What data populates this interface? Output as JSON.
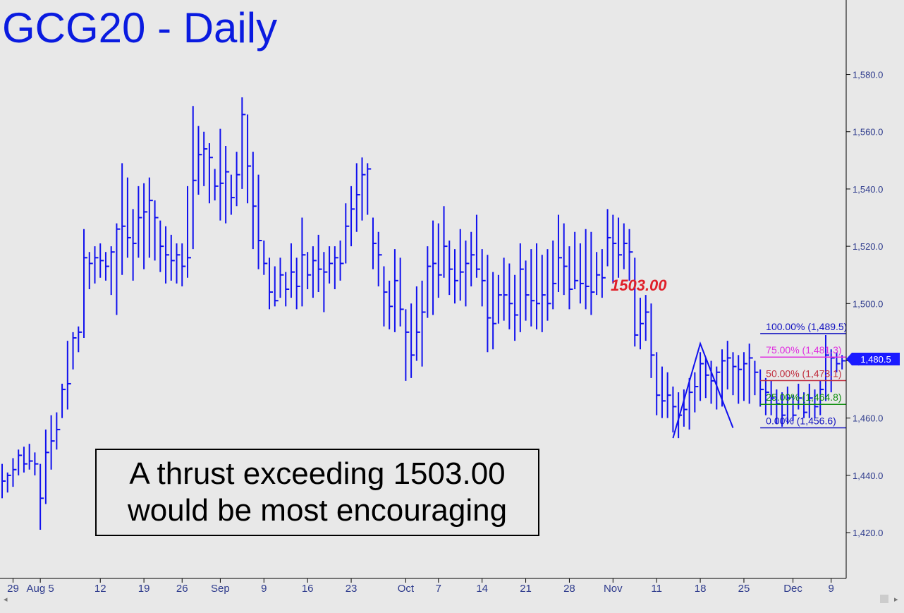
{
  "chart_data": {
    "type": "ohlc",
    "title": "GCG20 - Daily",
    "ylim": [
      1404,
      1606
    ],
    "y_ticks": [
      "1,420.0",
      "1,440.0",
      "1,460.0",
      "1,480.0",
      "1,500.0",
      "1,520.0",
      "1,540.0",
      "1,560.0",
      "1,580.0"
    ],
    "y_tick_values": [
      1420,
      1440,
      1460,
      1480,
      1500,
      1520,
      1540,
      1560,
      1580
    ],
    "x_ticks": [
      "29",
      "Aug 5",
      "12",
      "19",
      "26",
      "Sep",
      "9",
      "16",
      "23",
      "Oct",
      "7",
      "14",
      "21",
      "28",
      "Nov",
      "11",
      "18",
      "25",
      "Dec",
      "9"
    ],
    "x_tick_bar_index": [
      2,
      7,
      18,
      26,
      33,
      40,
      48,
      56,
      64,
      74,
      80,
      88,
      96,
      104,
      112,
      120,
      128,
      136,
      145,
      152
    ],
    "last_price": "1,480.5",
    "bars": [
      [
        0,
        1444,
        1432,
        1438
      ],
      [
        1,
        1441,
        1434,
        1440
      ],
      [
        2,
        1446,
        1436,
        1442
      ],
      [
        3,
        1449,
        1440,
        1447
      ],
      [
        4,
        1450,
        1441,
        1444
      ],
      [
        5,
        1451,
        1442,
        1445
      ],
      [
        6,
        1448,
        1440,
        1444
      ],
      [
        7,
        1444,
        1421,
        1432
      ],
      [
        8,
        1456,
        1430,
        1448
      ],
      [
        9,
        1461,
        1442,
        1452
      ],
      [
        10,
        1462,
        1449,
        1456
      ],
      [
        11,
        1472,
        1460,
        1470
      ],
      [
        12,
        1487,
        1463,
        1472
      ],
      [
        13,
        1490,
        1477,
        1488
      ],
      [
        14,
        1492,
        1483,
        1490
      ],
      [
        15,
        1526,
        1488,
        1516
      ],
      [
        16,
        1518,
        1505,
        1514
      ],
      [
        17,
        1520,
        1507,
        1516
      ],
      [
        18,
        1521,
        1509,
        1515
      ],
      [
        19,
        1518,
        1508,
        1513
      ],
      [
        20,
        1520,
        1503,
        1518
      ],
      [
        21,
        1528,
        1496,
        1526
      ],
      [
        22,
        1549,
        1510,
        1527
      ],
      [
        23,
        1544,
        1516,
        1523
      ],
      [
        24,
        1533,
        1508,
        1521
      ],
      [
        25,
        1541,
        1516,
        1530
      ],
      [
        26,
        1542,
        1512,
        1532
      ],
      [
        27,
        1544,
        1516,
        1536
      ],
      [
        28,
        1536,
        1515,
        1530
      ],
      [
        29,
        1529,
        1511,
        1520
      ],
      [
        30,
        1527,
        1507,
        1517
      ],
      [
        31,
        1524,
        1508,
        1515
      ],
      [
        32,
        1521,
        1507,
        1517
      ],
      [
        33,
        1521,
        1506,
        1513
      ],
      [
        34,
        1541,
        1509,
        1516
      ],
      [
        35,
        1569,
        1519,
        1543
      ],
      [
        36,
        1562,
        1538,
        1552
      ],
      [
        37,
        1560,
        1541,
        1554
      ],
      [
        38,
        1556,
        1535,
        1551
      ],
      [
        39,
        1547,
        1536,
        1541
      ],
      [
        40,
        1561,
        1529,
        1542
      ],
      [
        41,
        1555,
        1528,
        1546
      ],
      [
        42,
        1545,
        1531,
        1537
      ],
      [
        43,
        1553,
        1534,
        1545
      ],
      [
        44,
        1572,
        1540,
        1566
      ],
      [
        45,
        1566,
        1535,
        1548
      ],
      [
        46,
        1553,
        1519,
        1534
      ],
      [
        47,
        1545,
        1512,
        1522
      ],
      [
        48,
        1522,
        1510,
        1514
      ],
      [
        49,
        1516,
        1498,
        1504
      ],
      [
        50,
        1513,
        1499,
        1501
      ],
      [
        51,
        1516,
        1502,
        1510
      ],
      [
        52,
        1511,
        1499,
        1505
      ],
      [
        53,
        1521,
        1502,
        1511
      ],
      [
        54,
        1516,
        1498,
        1506
      ],
      [
        55,
        1530,
        1499,
        1517
      ],
      [
        56,
        1518,
        1505,
        1510
      ],
      [
        57,
        1520,
        1502,
        1515
      ],
      [
        58,
        1524,
        1504,
        1512
      ],
      [
        59,
        1518,
        1497,
        1511
      ],
      [
        60,
        1520,
        1507,
        1514
      ],
      [
        61,
        1520,
        1505,
        1516
      ],
      [
        62,
        1522,
        1508,
        1514
      ],
      [
        63,
        1535,
        1514,
        1527
      ],
      [
        64,
        1541,
        1520,
        1533
      ],
      [
        65,
        1549,
        1525,
        1538
      ],
      [
        66,
        1551,
        1529,
        1545
      ],
      [
        67,
        1549,
        1531,
        1547
      ],
      [
        68,
        1530,
        1512,
        1521
      ],
      [
        69,
        1525,
        1506,
        1517
      ],
      [
        70,
        1513,
        1492,
        1504
      ],
      [
        71,
        1508,
        1491,
        1499
      ],
      [
        72,
        1519,
        1490,
        1508
      ],
      [
        73,
        1516,
        1492,
        1498
      ],
      [
        74,
        1498,
        1473,
        1490
      ],
      [
        75,
        1500,
        1474,
        1482
      ],
      [
        76,
        1506,
        1480,
        1490
      ],
      [
        77,
        1508,
        1478,
        1497
      ],
      [
        78,
        1520,
        1495,
        1513
      ],
      [
        79,
        1529,
        1496,
        1514
      ],
      [
        80,
        1528,
        1502,
        1510
      ],
      [
        81,
        1534,
        1509,
        1520
      ],
      [
        82,
        1522,
        1503,
        1512
      ],
      [
        83,
        1519,
        1500,
        1508
      ],
      [
        84,
        1526,
        1501,
        1511
      ],
      [
        85,
        1522,
        1499,
        1514
      ],
      [
        86,
        1525,
        1506,
        1517
      ],
      [
        87,
        1531,
        1509,
        1512
      ],
      [
        88,
        1519,
        1499,
        1508
      ],
      [
        89,
        1517,
        1483,
        1495
      ],
      [
        90,
        1511,
        1484,
        1493
      ],
      [
        91,
        1510,
        1493,
        1503
      ],
      [
        92,
        1516,
        1494,
        1503
      ],
      [
        93,
        1514,
        1491,
        1500
      ],
      [
        94,
        1510,
        1487,
        1496
      ],
      [
        95,
        1521,
        1490,
        1512
      ],
      [
        96,
        1515,
        1494,
        1503
      ],
      [
        97,
        1519,
        1492,
        1501
      ],
      [
        98,
        1521,
        1491,
        1500
      ],
      [
        99,
        1517,
        1490,
        1503
      ],
      [
        100,
        1519,
        1494,
        1500
      ],
      [
        101,
        1522,
        1498,
        1507
      ],
      [
        102,
        1531,
        1504,
        1516
      ],
      [
        103,
        1528,
        1503,
        1513
      ],
      [
        104,
        1520,
        1498,
        1505
      ],
      [
        105,
        1525,
        1505,
        1508
      ],
      [
        106,
        1521,
        1500,
        1507
      ],
      [
        107,
        1526,
        1498,
        1506
      ],
      [
        108,
        1525,
        1496,
        1504
      ],
      [
        109,
        1518,
        1503,
        1510
      ],
      [
        110,
        1519,
        1502,
        1509
      ],
      [
        111,
        1533,
        1513,
        1523
      ],
      [
        112,
        1531,
        1507,
        1521
      ],
      [
        113,
        1530,
        1509,
        1517
      ],
      [
        114,
        1528,
        1512,
        1521
      ],
      [
        115,
        1526,
        1508,
        1518
      ],
      [
        116,
        1516,
        1485,
        1489
      ],
      [
        117,
        1502,
        1484,
        1493
      ],
      [
        118,
        1503,
        1487,
        1497
      ],
      [
        119,
        1500,
        1474,
        1482
      ],
      [
        120,
        1483,
        1461,
        1468
      ],
      [
        121,
        1478,
        1460,
        1466
      ],
      [
        122,
        1476,
        1460,
        1468
      ],
      [
        123,
        1471,
        1455,
        1464
      ],
      [
        124,
        1469,
        1453,
        1461
      ],
      [
        125,
        1470,
        1457,
        1463
      ],
      [
        126,
        1474,
        1456,
        1469
      ],
      [
        127,
        1476,
        1462,
        1471
      ],
      [
        128,
        1483,
        1466,
        1479
      ],
      [
        129,
        1481,
        1467,
        1475
      ],
      [
        130,
        1480,
        1465,
        1473
      ],
      [
        131,
        1478,
        1463,
        1476
      ],
      [
        132,
        1484,
        1464,
        1480
      ],
      [
        133,
        1487,
        1470,
        1481
      ],
      [
        134,
        1483,
        1468,
        1478
      ],
      [
        135,
        1482,
        1465,
        1477
      ],
      [
        136,
        1483,
        1466,
        1479
      ],
      [
        137,
        1486,
        1465,
        1481
      ],
      [
        138,
        1480,
        1468,
        1476
      ],
      [
        139,
        1477,
        1464,
        1470
      ],
      [
        140,
        1474,
        1461,
        1469
      ],
      [
        141,
        1473,
        1461,
        1467
      ],
      [
        142,
        1470,
        1458,
        1465
      ],
      [
        143,
        1469,
        1457,
        1461
      ],
      [
        144,
        1471,
        1458,
        1467
      ],
      [
        145,
        1468,
        1459,
        1461
      ],
      [
        146,
        1472,
        1463,
        1467
      ],
      [
        147,
        1469,
        1460,
        1462
      ],
      [
        148,
        1472,
        1460,
        1467
      ],
      [
        149,
        1470,
        1460,
        1464
      ],
      [
        150,
        1473,
        1461,
        1470
      ],
      [
        151,
        1489,
        1466,
        1482
      ],
      [
        152,
        1484,
        1469,
        1481
      ],
      [
        153,
        1483,
        1476,
        1479
      ],
      [
        154,
        1482,
        1477,
        1480
      ]
    ],
    "annotations": {
      "level_label": "1503.00",
      "level_label_color": "#e0202a",
      "abc_pattern": {
        "points": [
          [
            123,
            1453
          ],
          [
            128,
            1486
          ],
          [
            134,
            1456.6
          ]
        ]
      },
      "fib_retracement": {
        "bar_range": [
          139,
          154
        ],
        "levels": [
          {
            "label": "100.00% (1,489.5)",
            "value": 1489.5,
            "color": "#1010c0"
          },
          {
            "label": "75.00% (1,481.3)",
            "value": 1481.3,
            "color": "#e030e0"
          },
          {
            "label": "50.00% (1,473.1)",
            "value": 1473.1,
            "color": "#c03040"
          },
          {
            "label": "25.00% (1,464.8)",
            "value": 1464.8,
            "color": "#109010"
          },
          {
            "label": "0.00% (1,456.6)",
            "value": 1456.6,
            "color": "#1010c0"
          }
        ]
      }
    },
    "colors": {
      "bars": "#1010ee",
      "background": "#e8e8e8",
      "title": "#0a1be0",
      "axis_text": "#2d3a8c",
      "price_tag": "#1a1aff"
    }
  },
  "note": {
    "line1": "A thrust exceeding 1503.00",
    "line2": "would be most encouraging"
  }
}
